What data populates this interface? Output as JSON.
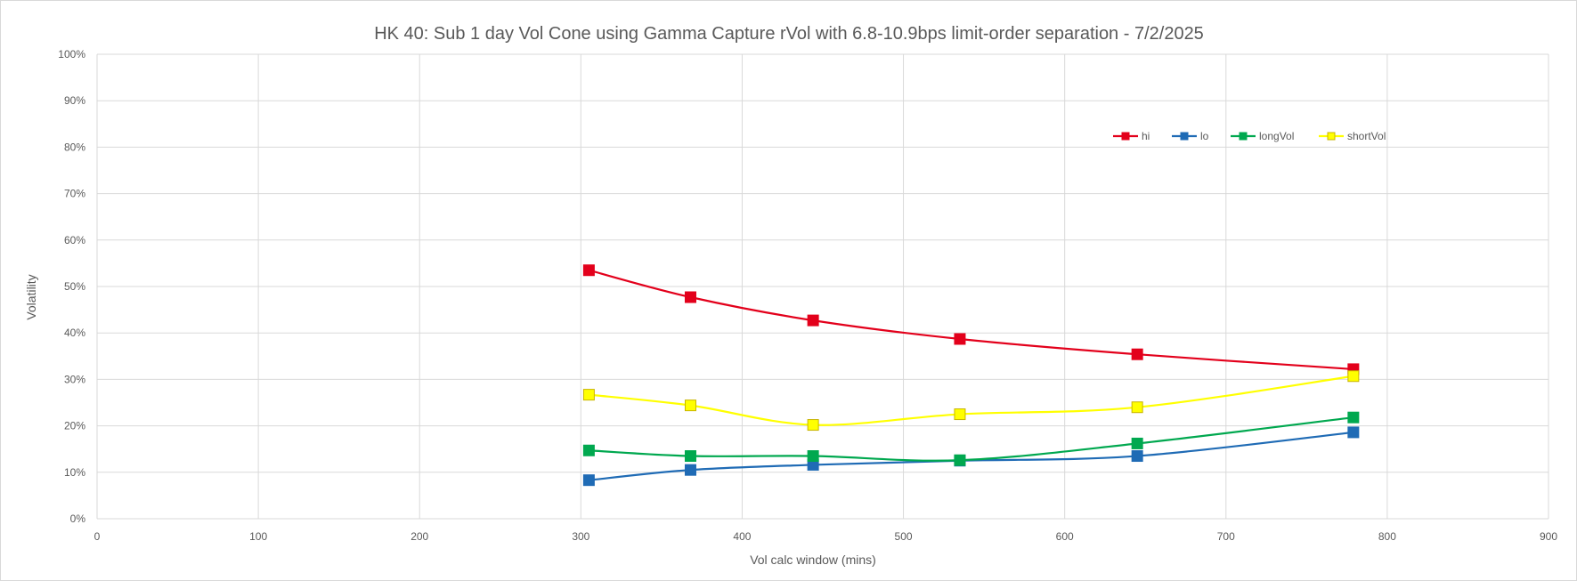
{
  "chart_data": {
    "type": "line",
    "title": "HK 40: Sub 1 day Vol Cone using Gamma Capture rVol with 6.8-10.9bps limit-order separation - 7/2/2025",
    "xlabel": "Vol calc window (mins)",
    "ylabel": "Volatility",
    "xlim": [
      0,
      900
    ],
    "ylim": [
      0,
      1
    ],
    "x_ticks": [
      "0",
      "100",
      "200",
      "300",
      "400",
      "500",
      "600",
      "700",
      "800",
      "900"
    ],
    "y_ticks": [
      "0%",
      "10%",
      "20%",
      "30%",
      "40%",
      "50%",
      "60%",
      "70%",
      "80%",
      "90%",
      "100%"
    ],
    "grid": true,
    "legend_position": "top-right",
    "x": [
      305,
      368,
      444,
      535,
      645,
      779
    ],
    "series": [
      {
        "name": "hi",
        "color": "#e3001b",
        "values": [
          0.535,
          0.477,
          0.427,
          0.387,
          0.354,
          0.322
        ]
      },
      {
        "name": "lo",
        "color": "#1f6bb5",
        "values": [
          0.083,
          0.105,
          0.116,
          0.125,
          0.135,
          0.186
        ]
      },
      {
        "name": "longVol",
        "color": "#00a84f",
        "values": [
          0.147,
          0.135,
          0.135,
          0.126,
          0.162,
          0.218
        ]
      },
      {
        "name": "shortVol",
        "color": "#ffff00",
        "values": [
          0.267,
          0.244,
          0.202,
          0.225,
          0.24,
          0.307
        ]
      }
    ]
  }
}
